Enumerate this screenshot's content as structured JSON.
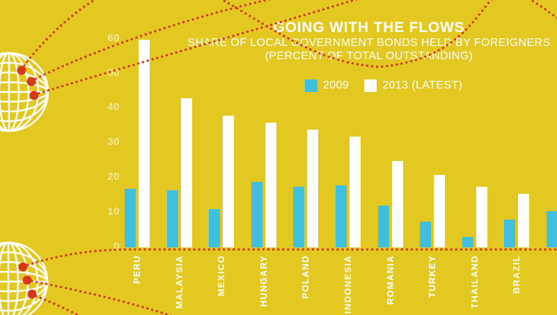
{
  "canvas": {
    "background": "#E3C822"
  },
  "header": {
    "title": "GOING WITH THE FLOWS",
    "subtitle_line1": "SHARE OF LOCAL GOVERNMENT BONDS HELD BY FOREIGNERS",
    "subtitle_line2": "(PERCENT OF TOTAL OUTSTANDING)"
  },
  "legend": [
    {
      "label": "2009",
      "color": "#41BFDE"
    },
    {
      "label": "2013 (LATEST)",
      "color": "#FFFFFF"
    }
  ],
  "icons": {
    "globe_top": "globe-icon",
    "globe_bottom": "globe-icon",
    "flow_lines": "red-dotted-flow-lines"
  },
  "colors": {
    "background": "#E3C822",
    "bar_2009": "#41BFDE",
    "bar_2013": "#FFFFFF",
    "flow_dots": "#D53A18",
    "tick_label": "#F3E79B",
    "text": "#FFFFFF"
  },
  "chart_data": {
    "type": "bar",
    "title": "GOING WITH THE FLOWS",
    "subtitle": "SHARE OF LOCAL GOVERNMENT BONDS HELD BY FOREIGNERS (PERCENT OF TOTAL OUTSTANDING)",
    "categories": [
      "PERU",
      "MALAYSIA",
      "MEXICO",
      "HUNGARY",
      "POLAND",
      "INDONESIA",
      "ROMANIA",
      "TURKEY",
      "THAILAND",
      "BRAZIL",
      ""
    ],
    "series": [
      {
        "name": "2009",
        "color": "#41BFDE",
        "values": [
          17,
          16.5,
          11,
          19,
          17.5,
          18,
          12,
          7.5,
          3,
          8,
          10.5
        ]
      },
      {
        "name": "2013 (LATEST)",
        "color": "#FFFFFF",
        "values": [
          60,
          43,
          38,
          36,
          34,
          32,
          25,
          21,
          17.5,
          15.5,
          null
        ]
      }
    ],
    "ylim": [
      0,
      60
    ],
    "yticks": [
      0,
      10,
      20,
      30,
      40,
      50,
      60
    ],
    "xlabel": "",
    "ylabel": "",
    "grid": false,
    "legend_position": "top-center",
    "note": "rightmost 2009 bar is clipped by the image edge and has no visible label"
  }
}
